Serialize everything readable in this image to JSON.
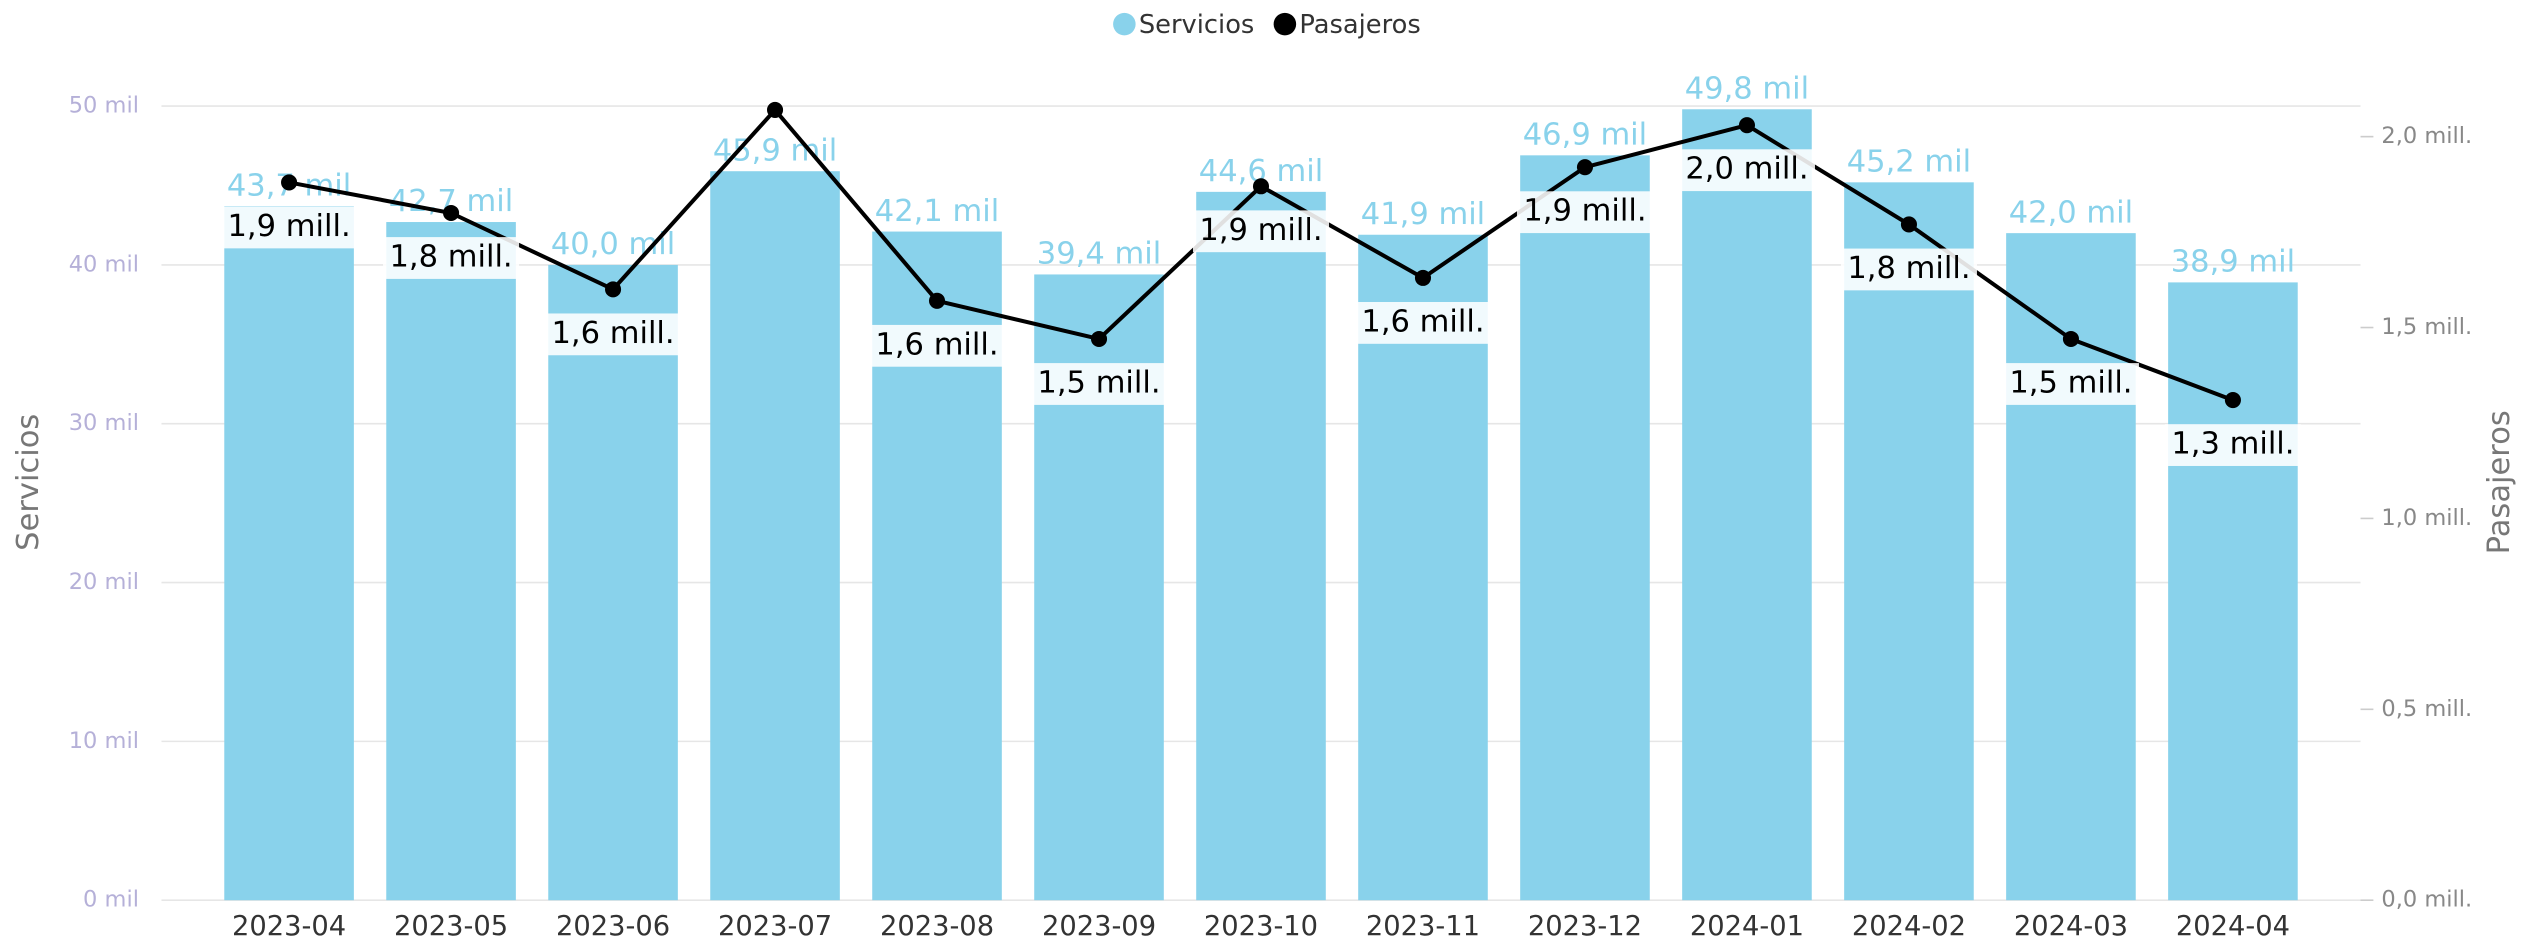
{
  "chart_data": {
    "type": "bar",
    "categories": [
      "2023-04",
      "2023-05",
      "2023-06",
      "2023-07",
      "2023-08",
      "2023-09",
      "2023-10",
      "2023-11",
      "2023-12",
      "2024-01",
      "2024-02",
      "2024-03",
      "2024-04"
    ],
    "series": [
      {
        "name": "Servicios",
        "type": "bar",
        "color": "#89d2eb",
        "values": [
          43.7,
          42.7,
          40.0,
          45.9,
          42.1,
          39.4,
          44.6,
          41.9,
          46.9,
          49.8,
          45.2,
          42.0,
          38.9
        ],
        "value_labels": [
          "43,7 mil",
          "42,7 mil",
          "40,0 mil",
          "45,9 mil",
          "42,1 mil",
          "39,4 mil",
          "44,6 mil",
          "41,9 mil",
          "46,9 mil",
          "49,8 mil",
          "45,2 mil",
          "42,0 mil",
          "38,9 mil"
        ]
      },
      {
        "name": "Pasajeros",
        "type": "line",
        "axis": "y2",
        "color": "#000000",
        "values": [
          1.88,
          1.8,
          1.6,
          2.07,
          1.57,
          1.47,
          1.87,
          1.63,
          1.92,
          2.03,
          1.77,
          1.47,
          1.31
        ],
        "value_labels": [
          "1,9 mill.",
          "1,8 mill.",
          "1,6 mill.",
          null,
          "1,6 mill.",
          "1,5 mill.",
          "1,9 mill.",
          "1,6 mill.",
          "1,9 mill.",
          "2,0 mill.",
          "1,8 mill.",
          "1,5 mill.",
          "1,3 mill."
        ]
      }
    ],
    "y_label": "Servicios",
    "y2_label": "Pasajeros",
    "ylim": [
      0,
      50
    ],
    "yticks": [
      {
        "value": 0,
        "label": "0 mil"
      },
      {
        "value": 10,
        "label": "10 mil"
      },
      {
        "value": 20,
        "label": "20 mil"
      },
      {
        "value": 30,
        "label": "30 mil"
      },
      {
        "value": 40,
        "label": "40 mil"
      },
      {
        "value": 50,
        "label": "50 mil"
      }
    ],
    "y2lim": [
      0,
      2.08
    ],
    "y2ticks": [
      {
        "value": 0,
        "label": "0,0 mill."
      },
      {
        "value": 0.5,
        "label": "0,5 mill."
      },
      {
        "value": 1,
        "label": "1,0 mill."
      },
      {
        "value": 1.5,
        "label": "1,5 mill."
      },
      {
        "value": 2,
        "label": "2,0 mill."
      }
    ],
    "grid": true,
    "legend": "top"
  }
}
